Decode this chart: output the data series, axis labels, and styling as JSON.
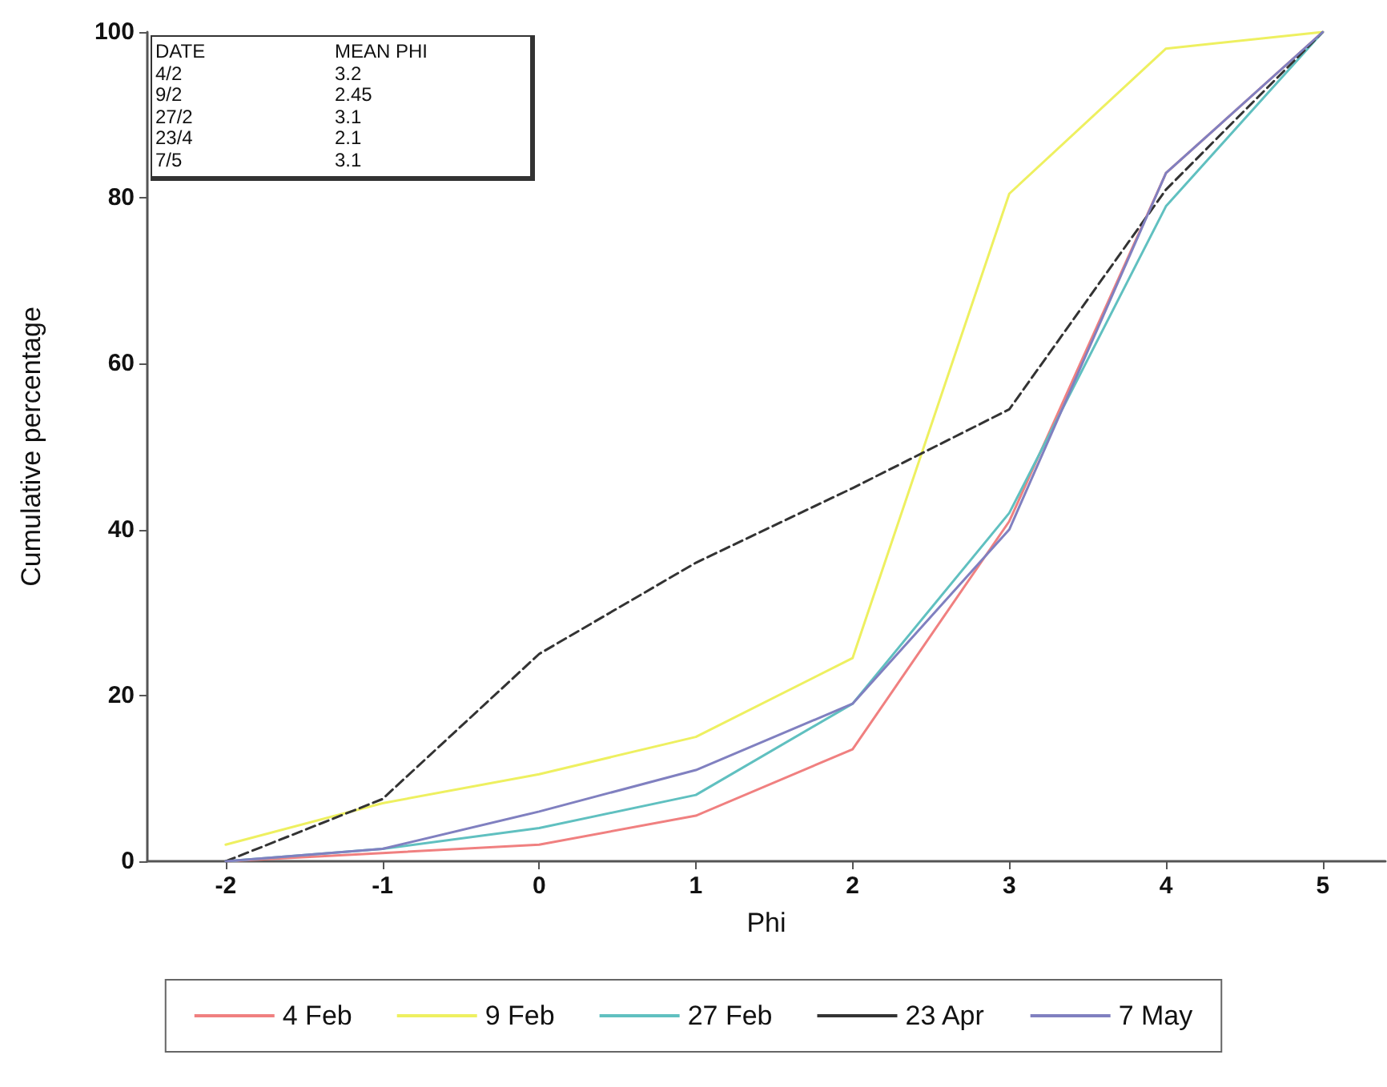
{
  "chart_data": {
    "type": "line",
    "xlabel": "Phi",
    "ylabel": "Cumulative percentage",
    "x": [
      -2,
      -1,
      0,
      1,
      2,
      3,
      4,
      5
    ],
    "xlim": [
      -2.5,
      5.4
    ],
    "xticks": [
      -2,
      -1,
      0,
      1,
      2,
      3,
      4,
      5
    ],
    "ylim": [
      0,
      100
    ],
    "yticks": [
      0,
      20,
      40,
      60,
      80,
      100
    ],
    "grid": false,
    "legend": "bottom",
    "marker": "none",
    "annotations": [
      "DATE",
      "MEAN PHI",
      "4/2",
      "3.2",
      "9/2",
      "2.45",
      "27/2",
      "3.1",
      "23/4",
      "2.1",
      "7/5",
      "3.1"
    ],
    "series": [
      {
        "name": "4 Feb",
        "color": "#f08080",
        "values": [
          0,
          1,
          2,
          5.5,
          13.5,
          41,
          83,
          100
        ]
      },
      {
        "name": "9 Feb",
        "color": "#eef060",
        "values": [
          2,
          7,
          10.5,
          15,
          24.5,
          80.5,
          98,
          100
        ]
      },
      {
        "name": "27 Feb",
        "color": "#60c0c0",
        "values": [
          0,
          1.5,
          4,
          8,
          19,
          42,
          79,
          100
        ]
      },
      {
        "name": "23 Apr",
        "color": "#333333",
        "line_style": "dashed",
        "values": [
          0,
          7.5,
          25,
          36,
          45,
          54.5,
          81,
          100
        ]
      },
      {
        "name": "7 May",
        "color": "#8080c0",
        "values": [
          0,
          1.5,
          6,
          11,
          19,
          40,
          83,
          100
        ]
      }
    ]
  }
}
